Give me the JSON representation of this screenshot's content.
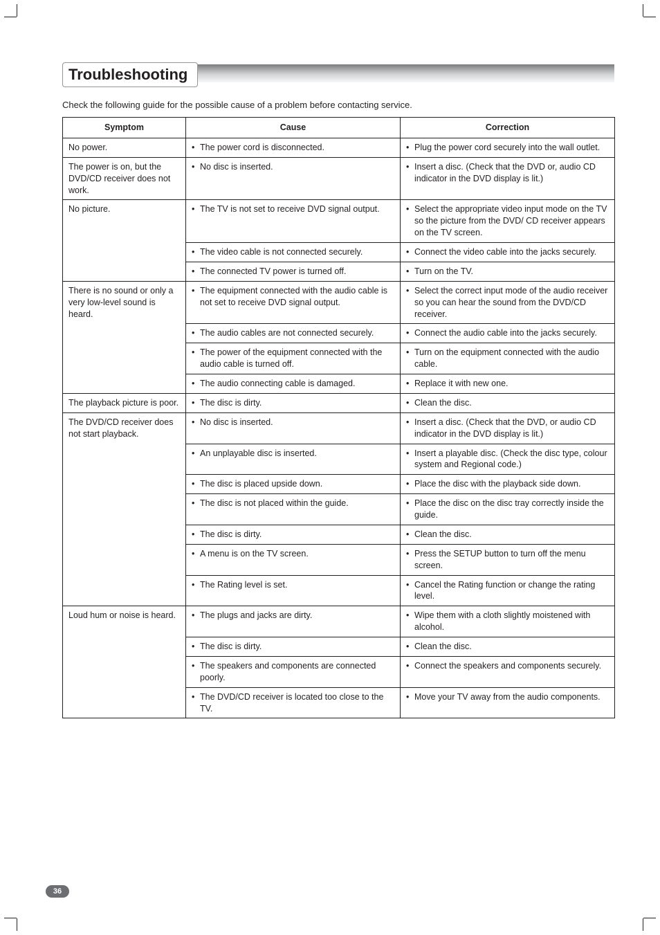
{
  "page_number": "36",
  "heading": "Troubleshooting",
  "intro": "Check the following guide for the possible cause of a problem before contacting service.",
  "headers": {
    "symptom": "Symptom",
    "cause": "Cause",
    "correction": "Correction"
  },
  "rows": [
    {
      "symptom": "No power.",
      "symptom_rowspan": 1,
      "cause": "The power cord is disconnected.",
      "correction": "Plug the power cord securely into the wall outlet."
    },
    {
      "symptom": "The power is on, but the DVD/CD receiver does not work.",
      "symptom_rowspan": 1,
      "cause": "No disc is inserted.",
      "correction": "Insert a disc. (Check that the DVD or, audio CD indicator in the DVD display is lit.)"
    },
    {
      "symptom": "No picture.",
      "symptom_rowspan": 3,
      "cause": "The TV is not set to receive DVD signal output.",
      "correction": "Select the appropriate video input mode on the TV so the picture from the DVD/ CD receiver appears on the TV screen."
    },
    {
      "cause": "The video cable is not connected securely.",
      "correction": "Connect the video cable into the jacks securely."
    },
    {
      "cause": "The connected TV power is turned off.",
      "correction": "Turn on the TV."
    },
    {
      "symptom": "There is no sound or only a very low-level sound is heard.",
      "symptom_rowspan": 4,
      "cause": "The equipment connected with the audio cable is not set to receive DVD signal output.",
      "correction": "Select the correct input mode of the audio receiver so you can hear the sound from the DVD/CD receiver."
    },
    {
      "cause": "The audio cables are not connected securely.",
      "correction": "Connect the audio cable into the jacks securely."
    },
    {
      "cause": "The power of the equipment connected with the audio cable is turned off.",
      "correction": "Turn on the equipment connected with the audio cable."
    },
    {
      "cause": "The audio connecting cable is damaged.",
      "correction": "Replace it with new one."
    },
    {
      "symptom": "The playback picture is  poor.",
      "symptom_rowspan": 1,
      "cause": "The disc is dirty.",
      "correction": "Clean the disc."
    },
    {
      "symptom": "The DVD/CD receiver does not start playback.",
      "symptom_rowspan": 7,
      "cause": "No disc is inserted.",
      "correction": "Insert a disc. (Check that the DVD, or audio CD indicator in the DVD display is lit.)"
    },
    {
      "cause": "An unplayable disc is inserted.",
      "correction": "Insert a playable disc. (Check the disc type, colour system and Regional code.)"
    },
    {
      "cause": "The disc is placed upside down.",
      "correction": "Place the disc with the playback side down."
    },
    {
      "cause": "The disc is not placed within the guide.",
      "correction": "Place the disc on the disc tray correctly inside the guide."
    },
    {
      "cause": "The disc is dirty.",
      "correction": "Clean the disc."
    },
    {
      "cause": "A menu is on the TV screen.",
      "correction": "Press the SETUP button to turn off the menu screen."
    },
    {
      "cause": "The Rating level is set.",
      "correction": "Cancel the Rating function or change the rating level."
    },
    {
      "symptom": "Loud hum or noise is heard.",
      "symptom_rowspan": 4,
      "cause": "The plugs and jacks are dirty.",
      "correction": "Wipe them with a cloth slightly moistened with alcohol."
    },
    {
      "cause": "The disc is dirty.",
      "correction": "Clean the disc."
    },
    {
      "cause": "The speakers and components are connected poorly.",
      "correction": "Connect the speakers and components securely."
    },
    {
      "cause": "The DVD/CD receiver is located too close to the TV.",
      "correction": "Move your TV away from the audio components."
    }
  ]
}
